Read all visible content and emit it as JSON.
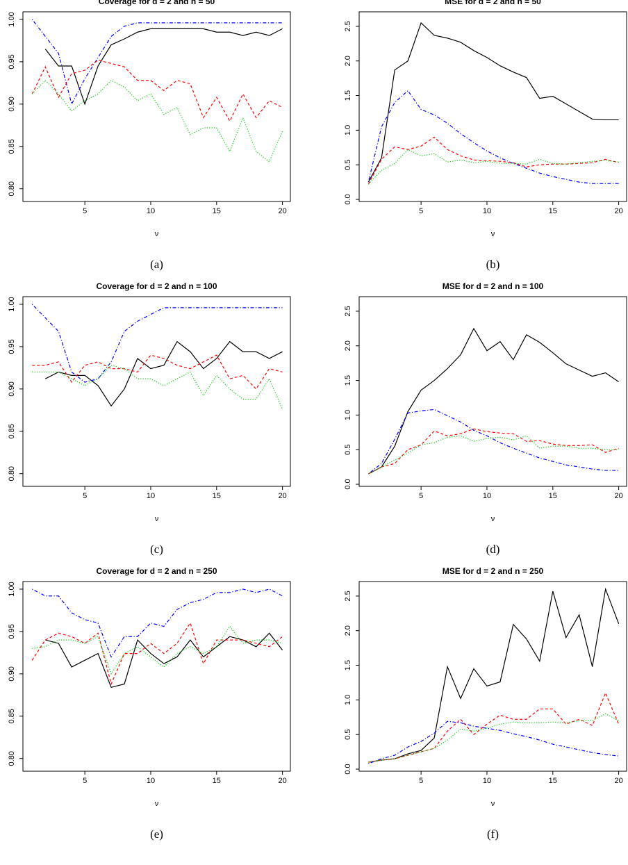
{
  "chart_data": [
    {
      "type": "line",
      "title": "Coverage for d = 2 and n = 50",
      "x_label": "ν",
      "caption": "(a)",
      "x": [
        1,
        2,
        3,
        4,
        5,
        6,
        7,
        8,
        9,
        10,
        11,
        12,
        13,
        14,
        15,
        16,
        17,
        18,
        19,
        20
      ],
      "xlim": [
        0.3,
        20.6
      ],
      "xticks": [
        5,
        10,
        15,
        20
      ],
      "ylim": [
        0.785,
        1.009
      ],
      "yticks": [
        {
          "value": 0.8,
          "label": "0.80"
        },
        0.85,
        {
          "value": 0.9,
          "label": "0.90"
        },
        0.95,
        {
          "value": 1,
          "label": "1.00"
        }
      ],
      "series": [
        {
          "color": "#000000",
          "line_style": "solid",
          "values": [
            null,
            0.965,
            0.945,
            0.945,
            0.9,
            0.945,
            0.97,
            0.977,
            0.985,
            0.989,
            0.989,
            0.989,
            0.989,
            0.989,
            0.985,
            0.985,
            0.981,
            0.985,
            0.981,
            0.989
          ]
        },
        {
          "color": "#0000ff",
          "line_style": "dotdash",
          "values": [
            1.0,
            0.98,
            0.96,
            0.9,
            0.93,
            0.955,
            0.98,
            0.992,
            0.996,
            0.996,
            0.996,
            0.996,
            0.996,
            0.996,
            0.996,
            0.996,
            0.996,
            0.996,
            0.996,
            0.996
          ]
        },
        {
          "color": "#ff0000",
          "line_style": "dashed",
          "values": [
            0.912,
            0.944,
            0.908,
            0.936,
            0.94,
            0.952,
            0.948,
            0.944,
            0.928,
            0.928,
            0.916,
            0.928,
            0.924,
            0.884,
            0.908,
            0.88,
            0.912,
            0.884,
            0.904,
            0.896
          ]
        },
        {
          "color": "#00cc00",
          "line_style": "dotted",
          "values": [
            0.912,
            0.928,
            0.912,
            0.892,
            0.904,
            0.912,
            0.928,
            0.92,
            0.904,
            0.912,
            0.888,
            0.896,
            0.864,
            0.872,
            0.872,
            0.844,
            0.884,
            0.844,
            0.832,
            0.868
          ]
        }
      ]
    },
    {
      "type": "line",
      "title": "MSE for d = 2 and n = 50",
      "x_label": "ν",
      "caption": "(b)",
      "x": [
        1,
        2,
        3,
        4,
        5,
        6,
        7,
        8,
        9,
        10,
        11,
        12,
        13,
        14,
        15,
        16,
        17,
        18,
        19,
        20
      ],
      "xlim": [
        0.3,
        20.6
      ],
      "xticks": [
        5,
        10,
        15,
        20
      ],
      "ylim": [
        -0.03,
        2.71
      ],
      "yticks": [
        {
          "value": 0,
          "label": "0.0"
        },
        0.5,
        {
          "value": 1,
          "label": "1.0"
        },
        1.5,
        {
          "value": 2,
          "label": "2.0"
        },
        2.5
      ],
      "series": [
        {
          "color": "#000000",
          "line_style": "solid",
          "values": [
            0.25,
            0.6,
            1.87,
            2.0,
            2.55,
            2.37,
            2.33,
            2.27,
            2.15,
            2.05,
            1.93,
            1.84,
            1.76,
            1.46,
            1.49,
            1.38,
            1.27,
            1.16,
            1.15,
            1.15
          ]
        },
        {
          "color": "#0000ff",
          "line_style": "dotdash",
          "values": [
            0.25,
            1.05,
            1.4,
            1.57,
            1.3,
            1.22,
            1.1,
            0.95,
            0.82,
            0.7,
            0.6,
            0.52,
            0.45,
            0.38,
            0.33,
            0.29,
            0.25,
            0.23,
            0.23,
            0.23
          ]
        },
        {
          "color": "#ff0000",
          "line_style": "dashed",
          "values": [
            0.22,
            0.58,
            0.76,
            0.72,
            0.77,
            0.9,
            0.72,
            0.63,
            0.57,
            0.56,
            0.55,
            0.53,
            0.47,
            0.5,
            0.51,
            0.51,
            0.52,
            0.53,
            0.58,
            0.53
          ]
        },
        {
          "color": "#00cc00",
          "line_style": "dotted",
          "values": [
            0.22,
            0.42,
            0.52,
            0.72,
            0.63,
            0.66,
            0.54,
            0.57,
            0.53,
            0.55,
            0.52,
            0.52,
            0.51,
            0.58,
            0.52,
            0.51,
            0.53,
            0.55,
            0.56,
            0.54
          ]
        }
      ]
    },
    {
      "type": "line",
      "title": "Coverage for d = 2 and n = 100",
      "x_label": "ν",
      "caption": "(c)",
      "x": [
        1,
        2,
        3,
        4,
        5,
        6,
        7,
        8,
        9,
        10,
        11,
        12,
        13,
        14,
        15,
        16,
        17,
        18,
        19,
        20
      ],
      "xlim": [
        0.3,
        20.6
      ],
      "xticks": [
        5,
        10,
        15,
        20
      ],
      "ylim": [
        0.785,
        1.009
      ],
      "yticks": [
        {
          "value": 0.8,
          "label": "0.80"
        },
        0.85,
        {
          "value": 0.9,
          "label": "0.90"
        },
        0.95,
        {
          "value": 1,
          "label": "1.00"
        }
      ],
      "series": [
        {
          "color": "#000000",
          "line_style": "solid",
          "values": [
            null,
            0.912,
            0.92,
            0.916,
            0.916,
            0.904,
            0.88,
            0.9,
            0.936,
            0.924,
            0.928,
            0.956,
            0.944,
            0.924,
            0.936,
            0.956,
            0.944,
            0.944,
            0.936,
            0.944
          ]
        },
        {
          "color": "#0000ff",
          "line_style": "dotdash",
          "values": [
            1.0,
            0.984,
            0.968,
            0.92,
            0.908,
            0.912,
            0.932,
            0.968,
            0.98,
            0.988,
            0.996,
            0.996,
            0.996,
            0.996,
            0.996,
            0.996,
            0.996,
            0.996,
            0.996,
            0.996
          ]
        },
        {
          "color": "#ff0000",
          "line_style": "dashed",
          "values": [
            0.928,
            0.928,
            0.932,
            0.908,
            0.928,
            0.932,
            0.924,
            0.924,
            0.92,
            0.94,
            0.936,
            0.928,
            0.924,
            0.932,
            0.94,
            0.912,
            0.916,
            0.9,
            0.924,
            0.92
          ]
        },
        {
          "color": "#00cc00",
          "line_style": "dotted",
          "values": [
            0.92,
            0.92,
            0.92,
            0.912,
            0.904,
            0.912,
            0.928,
            0.924,
            0.912,
            0.912,
            0.904,
            0.912,
            0.92,
            0.892,
            0.916,
            0.9,
            0.888,
            0.888,
            0.912,
            0.876
          ]
        }
      ]
    },
    {
      "type": "line",
      "title": "MSE for d = 2 and n = 100",
      "x_label": "ν",
      "caption": "(d)",
      "x": [
        1,
        2,
        3,
        4,
        5,
        6,
        7,
        8,
        9,
        10,
        11,
        12,
        13,
        14,
        15,
        16,
        17,
        18,
        19,
        20
      ],
      "xlim": [
        0.3,
        20.6
      ],
      "xticks": [
        5,
        10,
        15,
        20
      ],
      "ylim": [
        -0.03,
        2.71
      ],
      "yticks": [
        {
          "value": 0,
          "label": "0.0"
        },
        0.5,
        {
          "value": 1,
          "label": "1.0"
        },
        1.5,
        {
          "value": 2,
          "label": "2.0"
        },
        2.5
      ],
      "series": [
        {
          "color": "#000000",
          "line_style": "solid",
          "values": [
            0.15,
            0.25,
            0.55,
            1.05,
            1.36,
            1.5,
            1.67,
            1.87,
            2.25,
            1.93,
            2.06,
            1.8,
            2.16,
            2.05,
            1.9,
            1.74,
            1.65,
            1.56,
            1.61,
            1.48
          ]
        },
        {
          "color": "#0000ff",
          "line_style": "dotdash",
          "values": [
            0.15,
            0.3,
            0.65,
            1.03,
            1.06,
            1.08,
            0.99,
            0.9,
            0.78,
            0.7,
            0.6,
            0.52,
            0.45,
            0.38,
            0.33,
            0.28,
            0.25,
            0.22,
            0.2,
            0.2
          ]
        },
        {
          "color": "#ff0000",
          "line_style": "dashed",
          "values": [
            0.15,
            0.25,
            0.3,
            0.5,
            0.57,
            0.77,
            0.7,
            0.73,
            0.8,
            0.76,
            0.74,
            0.73,
            0.62,
            0.63,
            0.58,
            0.56,
            0.56,
            0.57,
            0.46,
            0.52
          ]
        },
        {
          "color": "#00cc00",
          "line_style": "dotted",
          "values": [
            0.15,
            0.25,
            0.35,
            0.45,
            0.57,
            0.6,
            0.68,
            0.7,
            0.62,
            0.66,
            0.68,
            0.64,
            0.7,
            0.52,
            0.55,
            0.55,
            0.52,
            0.52,
            0.5,
            0.5
          ]
        }
      ]
    },
    {
      "type": "line",
      "title": "Coverage for d = 2 and n = 250",
      "x_label": "ν",
      "caption": "(e)",
      "x": [
        1,
        2,
        3,
        4,
        5,
        6,
        7,
        8,
        9,
        10,
        11,
        12,
        13,
        14,
        15,
        16,
        17,
        18,
        19,
        20
      ],
      "xlim": [
        0.3,
        20.6
      ],
      "xticks": [
        5,
        10,
        15,
        20
      ],
      "ylim": [
        0.785,
        1.009
      ],
      "yticks": [
        {
          "value": 0.8,
          "label": "0.80"
        },
        0.85,
        {
          "value": 0.9,
          "label": "0.90"
        },
        0.95,
        {
          "value": 1,
          "label": "1.00"
        }
      ],
      "series": [
        {
          "color": "#000000",
          "line_style": "solid",
          "values": [
            null,
            0.94,
            0.936,
            0.908,
            0.916,
            0.924,
            0.884,
            0.888,
            0.94,
            0.924,
            0.912,
            0.92,
            0.94,
            0.92,
            0.932,
            0.944,
            0.94,
            0.932,
            0.948,
            0.928
          ]
        },
        {
          "color": "#0000ff",
          "line_style": "dotdash",
          "values": [
            1.0,
            0.992,
            0.992,
            0.972,
            0.964,
            0.96,
            0.92,
            0.944,
            0.944,
            0.96,
            0.956,
            0.976,
            0.984,
            0.988,
            0.996,
            0.996,
            1.0,
            0.996,
            1.0,
            0.992
          ]
        },
        {
          "color": "#ff0000",
          "line_style": "dashed",
          "values": [
            0.916,
            0.94,
            0.948,
            0.944,
            0.936,
            0.948,
            0.888,
            0.924,
            0.924,
            0.936,
            0.924,
            0.936,
            0.96,
            0.912,
            0.94,
            0.94,
            0.94,
            0.936,
            0.932,
            0.944
          ]
        },
        {
          "color": "#00cc00",
          "line_style": "dotted",
          "values": [
            0.93,
            0.932,
            0.94,
            0.94,
            0.936,
            0.944,
            0.9,
            0.924,
            0.932,
            0.92,
            0.908,
            0.924,
            0.932,
            0.924,
            0.932,
            0.956,
            0.936,
            0.94,
            0.94,
            0.936
          ]
        }
      ]
    },
    {
      "type": "line",
      "title": "MSE for d = 2 and n = 250",
      "x_label": "ν",
      "caption": "(f)",
      "x": [
        1,
        2,
        3,
        4,
        5,
        6,
        7,
        8,
        9,
        10,
        11,
        12,
        13,
        14,
        15,
        16,
        17,
        18,
        19,
        20
      ],
      "xlim": [
        0.3,
        20.6
      ],
      "xticks": [
        5,
        10,
        15,
        20
      ],
      "ylim": [
        -0.03,
        2.71
      ],
      "yticks": [
        {
          "value": 0,
          "label": "0.0"
        },
        0.5,
        {
          "value": 1,
          "label": "1.0"
        },
        1.5,
        {
          "value": 2,
          "label": "2.0"
        },
        2.5
      ],
      "series": [
        {
          "color": "#000000",
          "line_style": "solid",
          "values": [
            0.1,
            0.13,
            0.15,
            0.22,
            0.27,
            0.45,
            1.48,
            1.02,
            1.45,
            1.2,
            1.26,
            2.09,
            1.88,
            1.56,
            2.57,
            1.9,
            2.23,
            1.48,
            2.6,
            2.1
          ]
        },
        {
          "color": "#0000ff",
          "line_style": "dotdash",
          "values": [
            0.08,
            0.15,
            0.2,
            0.32,
            0.4,
            0.52,
            0.69,
            0.67,
            0.62,
            0.59,
            0.56,
            0.51,
            0.47,
            0.42,
            0.36,
            0.32,
            0.28,
            0.24,
            0.21,
            0.19
          ]
        },
        {
          "color": "#ff0000",
          "line_style": "dashed",
          "values": [
            0.1,
            0.13,
            0.15,
            0.2,
            0.25,
            0.3,
            0.55,
            0.72,
            0.5,
            0.65,
            0.78,
            0.72,
            0.72,
            0.87,
            0.87,
            0.65,
            0.72,
            0.63,
            1.1,
            0.65
          ]
        },
        {
          "color": "#00cc00",
          "line_style": "dotted",
          "values": [
            0.1,
            0.13,
            0.15,
            0.2,
            0.25,
            0.3,
            0.42,
            0.58,
            0.55,
            0.59,
            0.65,
            0.68,
            0.67,
            0.67,
            0.68,
            0.67,
            0.7,
            0.7,
            0.8,
            0.7
          ]
        }
      ]
    }
  ]
}
